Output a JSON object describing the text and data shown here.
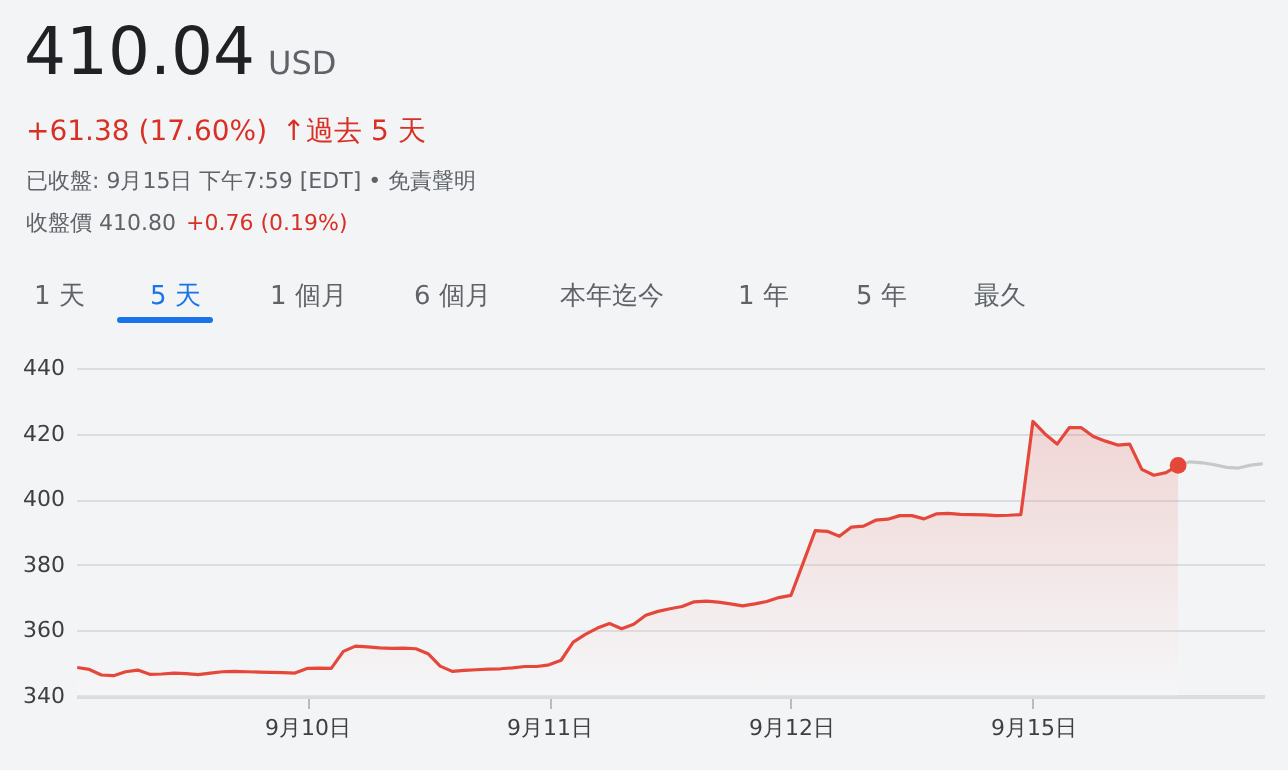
{
  "chart_data": {
    "type": "area",
    "title": "410.04",
    "annotations": [
      "USD",
      "+61.38 (17.60%)",
      "↑",
      "過去 5 天",
      "已收盤: 9月15日 下午7:59 [EDT] • 免責聲明",
      "收盤價 410.80",
      "+0.76 (0.19%)",
      "1 天",
      "5 天",
      "1 個月",
      "6 個月",
      "本年迄今",
      "1 年",
      "5 年",
      "最久"
    ],
    "categories": [
      null,
      null,
      null,
      null,
      null,
      null,
      null,
      null,
      null,
      null,
      null,
      null,
      null,
      null,
      null,
      null,
      null,
      null,
      null,
      "9月10日",
      null,
      null,
      null,
      null,
      null,
      null,
      null,
      null,
      null,
      null,
      null,
      null,
      null,
      null,
      null,
      null,
      null,
      null,
      null,
      "9月11日",
      null,
      null,
      null,
      null,
      null,
      null,
      null,
      null,
      null,
      null,
      null,
      null,
      null,
      null,
      null,
      null,
      null,
      null,
      null,
      "9月12日",
      null,
      null,
      null,
      null,
      null,
      null,
      null,
      null,
      null,
      null,
      null,
      null,
      null,
      null,
      null,
      null,
      null,
      null,
      null,
      "9月15日",
      null,
      null,
      null,
      null,
      null,
      null,
      null,
      null,
      null,
      null,
      null,
      null,
      null,
      null,
      null,
      null,
      null,
      null,
      null
    ],
    "ylim": [
      340,
      440
    ],
    "yticks": [
      340,
      360,
      380,
      400,
      420,
      440
    ],
    "grid": "y",
    "series": [
      {
        "color": "#e5483b",
        "values": [
          348.7,
          348.1,
          346.4,
          346.2,
          347.4,
          347.9,
          346.6,
          346.7,
          347.0,
          346.8,
          346.5,
          347.0,
          347.4,
          347.5,
          347.4,
          347.3,
          347.2,
          347.1,
          347.0,
          348.4,
          348.5,
          348.4,
          353.6,
          355.2,
          355.0,
          354.7,
          354.5,
          354.6,
          354.4,
          352.9,
          349.1,
          347.5,
          347.8,
          348.0,
          348.2,
          348.3,
          348.6,
          349.0,
          349.0,
          349.5,
          350.9,
          356.4,
          358.8,
          360.7,
          362.1,
          360.5,
          361.9,
          364.6,
          365.8,
          366.6,
          367.3,
          368.7,
          368.9,
          368.6,
          368.1,
          367.5,
          368.1,
          368.8,
          370.0,
          370.7,
          380.5,
          390.4,
          390.2,
          388.7,
          391.5,
          391.8,
          393.6,
          393.9,
          395.0,
          395.0,
          394.0,
          395.5,
          395.7,
          395.4,
          395.3,
          395.2,
          395.0,
          395.1,
          395.3,
          423.7,
          419.9,
          416.8,
          421.8,
          421.8,
          419.1,
          417.7,
          416.5,
          416.8,
          409.1,
          407.3,
          408.1,
          410.3,
          null,
          null,
          null,
          null,
          null,
          null,
          null
        ]
      },
      {
        "type": "line",
        "color": "#c8c8c8",
        "values": [
          null,
          null,
          null,
          null,
          null,
          null,
          null,
          null,
          null,
          null,
          null,
          null,
          null,
          null,
          null,
          null,
          null,
          null,
          null,
          null,
          null,
          null,
          null,
          null,
          null,
          null,
          null,
          null,
          null,
          null,
          null,
          null,
          null,
          null,
          null,
          null,
          null,
          null,
          null,
          null,
          null,
          null,
          null,
          null,
          null,
          null,
          null,
          null,
          null,
          null,
          null,
          null,
          null,
          null,
          null,
          null,
          null,
          null,
          null,
          null,
          null,
          null,
          null,
          null,
          null,
          null,
          null,
          null,
          null,
          null,
          null,
          null,
          null,
          null,
          null,
          null,
          null,
          null,
          null,
          null,
          null,
          null,
          null,
          null,
          null,
          null,
          null,
          null,
          null,
          null,
          null,
          410.3,
          411.4,
          411.1,
          410.5,
          409.7,
          409.5,
          410.4,
          410.8
        ]
      },
      {
        "type": "scatter",
        "color": "#e5483b",
        "values": [
          null,
          null,
          null,
          null,
          null,
          null,
          null,
          null,
          null,
          null,
          null,
          null,
          null,
          null,
          null,
          null,
          null,
          null,
          null,
          null,
          null,
          null,
          null,
          null,
          null,
          null,
          null,
          null,
          null,
          null,
          null,
          null,
          null,
          null,
          null,
          null,
          null,
          null,
          null,
          null,
          null,
          null,
          null,
          null,
          null,
          null,
          null,
          null,
          null,
          null,
          null,
          null,
          null,
          null,
          null,
          null,
          null,
          null,
          null,
          null,
          null,
          null,
          null,
          null,
          null,
          null,
          null,
          null,
          null,
          null,
          null,
          null,
          null,
          null,
          null,
          null,
          null,
          null,
          null,
          null,
          null,
          null,
          null,
          null,
          null,
          null,
          null,
          null,
          null,
          null,
          null,
          410.3,
          null,
          null,
          null,
          null,
          null,
          null,
          null
        ]
      }
    ]
  }
}
